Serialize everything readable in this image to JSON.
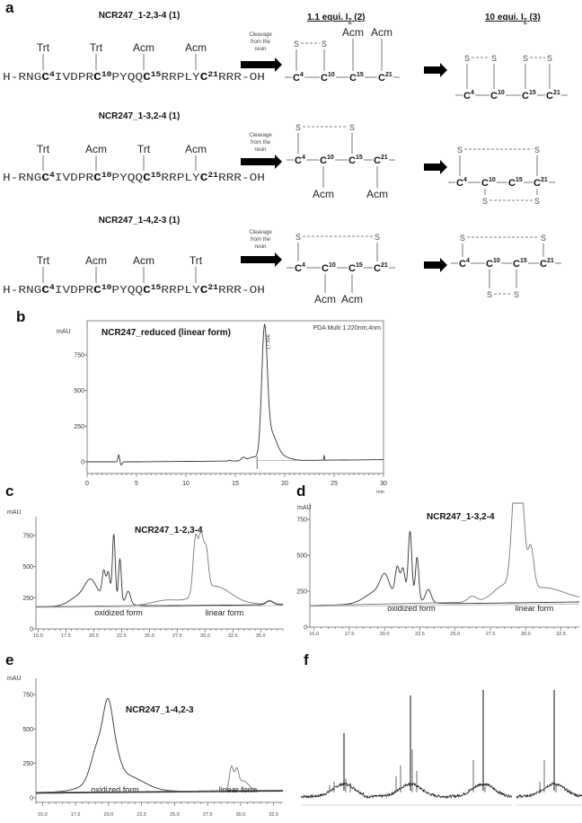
{
  "panel_labels": {
    "a": "a",
    "b": "b",
    "c": "c",
    "d": "d",
    "e": "e",
    "f": "f"
  },
  "panel_a": {
    "header_mid": {
      "text": "1.1 equi. I",
      "sub": "2",
      "suffix": " (2)"
    },
    "header_end": {
      "text": "10 equi. I",
      "sub": "2",
      "suffix": " (3)"
    },
    "cleavage_text": [
      "Cleavage",
      "from the",
      "resin"
    ],
    "sequence": [
      {
        "t": "H-RNG",
        "k": "n"
      },
      {
        "t": "C",
        "k": "b"
      },
      {
        "t": "4",
        "k": "s"
      },
      {
        "t": "IVDPR",
        "k": "n"
      },
      {
        "t": "C",
        "k": "b"
      },
      {
        "t": "10",
        "k": "s"
      },
      {
        "t": "PYQQ",
        "k": "n"
      },
      {
        "t": "C",
        "k": "b"
      },
      {
        "t": "15",
        "k": "s"
      },
      {
        "t": "RRPLY",
        "k": "n"
      },
      {
        "t": "C",
        "k": "b"
      },
      {
        "t": "21",
        "k": "s"
      },
      {
        "t": "RRR-OH",
        "k": "n"
      }
    ],
    "cysteine_symbol": "C",
    "cysteine_numbers": [
      "4",
      "10",
      "15",
      "21"
    ],
    "sulfur_symbol": "S",
    "rows": [
      {
        "title": "NCR247_1-2,3-4 (1)",
        "protecting_groups": [
          "Trt",
          "Trt",
          "Acm",
          "Acm"
        ],
        "intermediate_protecting_groups": [
          "Acm",
          "Acm"
        ]
      },
      {
        "title": "NCR247_1-3,2-4 (1)",
        "protecting_groups": [
          "Trt",
          "Acm",
          "Trt",
          "Acm"
        ],
        "intermediate_protecting_groups": [
          "Acm",
          "Acm"
        ]
      },
      {
        "title": "NCR247_1-4,2-3 (1)",
        "protecting_groups": [
          "Trt",
          "Acm",
          "Acm",
          "Trt"
        ],
        "intermediate_protecting_groups": [
          "Acm",
          "Acm"
        ]
      }
    ],
    "colors": {
      "arrow": "#000000"
    }
  },
  "chart_data": [
    {
      "panel": "b",
      "type": "line",
      "title": "NCR247_reduced (linear form)",
      "ylabel": "mAU",
      "xlabel": "min",
      "xlim": [
        0,
        30
      ],
      "ylim": [
        -60,
        950
      ],
      "xticks": [
        "0",
        "5",
        "10",
        "15",
        "20",
        "25",
        "30"
      ],
      "xtick_values": [
        0,
        5,
        10,
        15,
        20,
        25,
        30
      ],
      "yticks": [
        "0",
        "250",
        "500",
        "750"
      ],
      "ytick_values": [
        0,
        250,
        500,
        750
      ],
      "annotations": {
        "detector": "PDA Multi 1 220nm,4nm",
        "peak_label": "17.956"
      },
      "series": [
        {
          "baseline": [
            [
              0,
              0
            ],
            [
              5,
              0
            ],
            [
              30,
              15
            ]
          ],
          "peaks": [
            [
              3.2,
              50,
              0.08
            ],
            [
              3.45,
              -22,
              0.1
            ],
            [
              14.4,
              5,
              0.1
            ],
            [
              15.8,
              22,
              0.2
            ],
            [
              16.8,
              25,
              0.5
            ],
            [
              17.95,
              860,
              0.28
            ],
            [
              18.6,
              180,
              0.55
            ],
            [
              19.6,
              30,
              0.8
            ],
            [
              24.0,
              35,
              0.03
            ]
          ]
        }
      ]
    },
    {
      "panel": "c",
      "type": "line",
      "title": "NCR247_1-2,3-4",
      "ylabel": "mAU",
      "xlim": [
        14.8,
        37
      ],
      "ylim": [
        0,
        950
      ],
      "xticks": [
        "15.0",
        "17.5",
        "20.0",
        "22.5",
        "25.0",
        "27.5",
        "30.0",
        "32.5",
        "35.0"
      ],
      "xtick_values": [
        15,
        17.5,
        20,
        22.5,
        25,
        27.5,
        30,
        32.5,
        35
      ],
      "yticks": [
        "0",
        "250",
        "500",
        "750"
      ],
      "ytick_values": [
        0,
        250,
        500,
        750
      ],
      "region_labels": [
        "oxidized form",
        "linear form"
      ],
      "series": [
        {
          "name": "oxidized form",
          "baseline": [
            [
              14.8,
              178
            ],
            [
              37,
              195
            ]
          ],
          "peaks": [
            [
              18.6,
              50,
              0.8
            ],
            [
              19.7,
              130,
              0.5
            ],
            [
              20.5,
              80,
              1.5
            ],
            [
              20.9,
              200,
              0.15
            ],
            [
              21.3,
              200,
              0.15
            ],
            [
              21.8,
              520,
              0.13
            ],
            [
              22.35,
              340,
              0.12
            ],
            [
              23.1,
              100,
              0.2
            ],
            [
              35.8,
              30,
              0.3
            ]
          ]
        },
        {
          "name": "linear form",
          "baseline": [
            [
              14.8,
              178
            ],
            [
              37,
              200
            ]
          ],
          "peaks": [
            [
              26.5,
              40,
              1.2
            ],
            [
              29.15,
              460,
              0.22
            ],
            [
              29.65,
              420,
              0.2
            ],
            [
              30.1,
              310,
              0.2
            ],
            [
              30.8,
              150,
              1.5
            ],
            [
              35.8,
              30,
              0.3
            ]
          ]
        }
      ]
    },
    {
      "panel": "d",
      "type": "line",
      "title": "NCR247_1-3,2-4",
      "ylabel": "mAU",
      "xlim": [
        14.7,
        33.8
      ],
      "ylim": [
        0,
        950
      ],
      "xticks": [
        "15.0",
        "17.5",
        "20.0",
        "22.5",
        "25.0",
        "27.5",
        "30.0",
        "32.5"
      ],
      "xtick_values": [
        15,
        17.5,
        20,
        22.5,
        25,
        27.5,
        30,
        32.5
      ],
      "yticks": [
        "0",
        "250",
        "500",
        "750"
      ],
      "ytick_values": [
        0,
        250,
        500,
        750
      ],
      "region_labels": [
        "oxidized form",
        "linear form"
      ],
      "series": [
        {
          "name": "oxidized form",
          "baseline": [
            [
              14.7,
              150
            ],
            [
              33.8,
              175
            ]
          ],
          "peaks": [
            [
              19.5,
              60,
              0.8
            ],
            [
              20.0,
              120,
              0.3
            ],
            [
              20.5,
              50,
              1.5
            ],
            [
              20.9,
              200,
              0.15
            ],
            [
              21.3,
              200,
              0.15
            ],
            [
              21.8,
              470,
              0.13
            ],
            [
              22.3,
              300,
              0.12
            ],
            [
              23.1,
              90,
              0.2
            ]
          ]
        },
        {
          "name": "linear form",
          "baseline": [
            [
              14.7,
              150
            ],
            [
              33.8,
              190
            ]
          ],
          "peaks": [
            [
              26.2,
              40,
              0.3
            ],
            [
              28.5,
              100,
              0.8
            ],
            [
              29.25,
              720,
              0.25
            ],
            [
              29.75,
              560,
              0.2
            ],
            [
              30.35,
              300,
              0.22
            ],
            [
              31.2,
              90,
              1.5
            ]
          ]
        }
      ]
    },
    {
      "panel": "e",
      "type": "line",
      "title": "NCR247_1-4,2-3",
      "ylabel": "mAU",
      "xlim": [
        14.5,
        33.2
      ],
      "ylim": [
        0,
        950
      ],
      "xticks": [
        "15.0",
        "17.5",
        "20.0",
        "22.5",
        "25.0",
        "27.5",
        "30.0",
        "32.5"
      ],
      "xtick_values": [
        15,
        17.5,
        20,
        22.5,
        25,
        27.5,
        30,
        32.5
      ],
      "yticks": [
        "0",
        "250",
        "500",
        "750"
      ],
      "ytick_values": [
        0,
        250,
        500,
        750
      ],
      "region_labels": [
        "oxidized form",
        "linear form"
      ],
      "series": [
        {
          "name": "oxidized form",
          "baseline": [
            [
              14.5,
              40
            ],
            [
              33.2,
              55
            ]
          ],
          "peaks": [
            [
              19.2,
              250,
              0.5
            ],
            [
              19.95,
              420,
              0.35
            ],
            [
              20.5,
              150,
              0.4
            ],
            [
              20.0,
              100,
              1.5
            ],
            [
              21.8,
              60,
              1.2
            ]
          ]
        },
        {
          "name": "linear form",
          "baseline": [
            [
              14.5,
              40
            ],
            [
              33.2,
              55
            ]
          ],
          "peaks": [
            [
              29.3,
              170,
              0.15
            ],
            [
              29.7,
              130,
              0.15
            ],
            [
              30.2,
              70,
              0.4
            ]
          ]
        }
      ]
    },
    {
      "panel": "f",
      "type": "line",
      "note_units": "relative intensity",
      "spectra": [
        {
          "main_peak": 60,
          "minor_peaks": [
            12,
            15,
            18,
            14
          ]
        },
        {
          "main_peak": 95,
          "minor_peaks": [
            20,
            30,
            45,
            25
          ]
        },
        {
          "main_peak": 100,
          "minor_peaks": [
            8,
            35,
            10
          ]
        },
        {
          "main_peak": 100,
          "minor_peaks": [
            15,
            35,
            12
          ]
        }
      ]
    }
  ]
}
